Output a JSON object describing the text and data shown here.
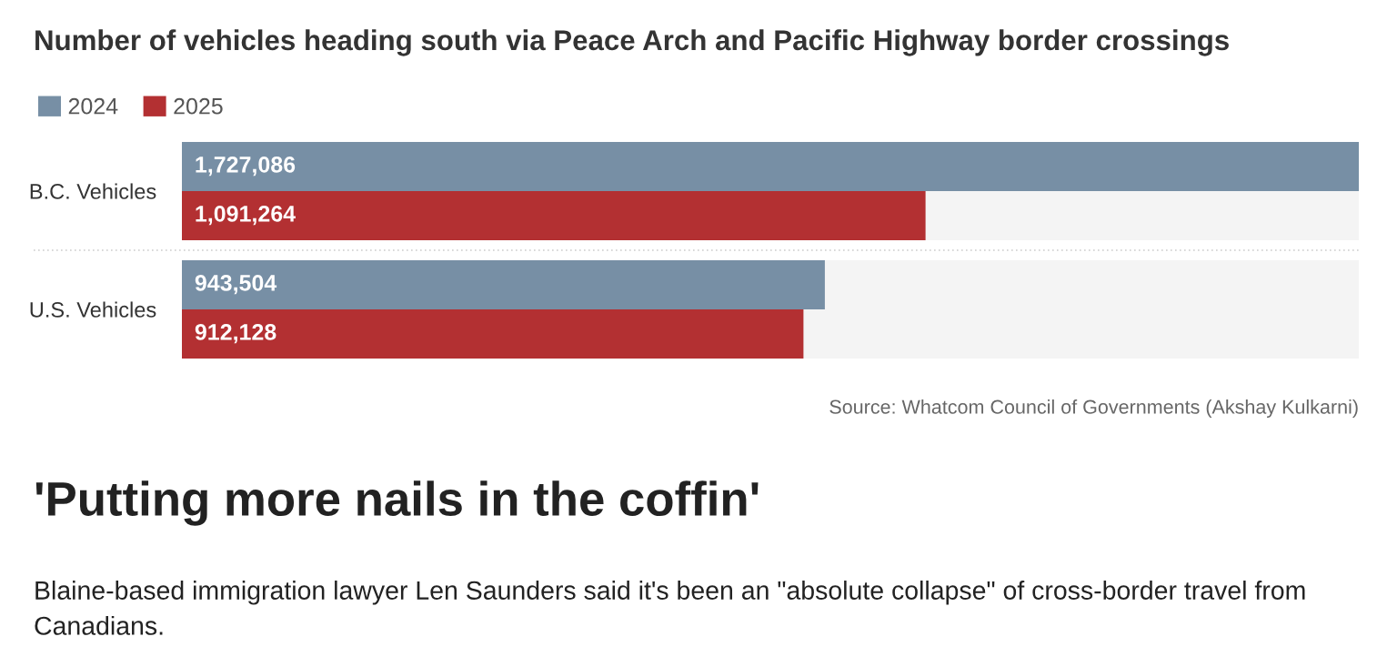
{
  "chart_data": {
    "type": "bar",
    "orientation": "horizontal",
    "title": "Number of vehicles heading south via Peace Arch and Pacific Highway border crossings",
    "categories": [
      "B.C. Vehicles",
      "U.S. Vehicles"
    ],
    "series": [
      {
        "name": "2024",
        "color": "#778fa5",
        "values": [
          1727086,
          943504
        ],
        "value_labels": [
          "1,727,086",
          "943,504"
        ]
      },
      {
        "name": "2025",
        "color": "#b33032",
        "values": [
          1091264,
          912128
        ],
        "value_labels": [
          "1,091,264",
          "912,128"
        ]
      }
    ],
    "legend": "top left",
    "tick_labels": "y",
    "annotations": [
      "Source: Whatcom Council of Governments (Akshay Kulkarni)",
      "'Putting more nails in the coffin'",
      "Blaine-based immigration lawyer Len Saunders said it's been an \"absolute collapse\" of cross-border travel from Canadians."
    ]
  }
}
